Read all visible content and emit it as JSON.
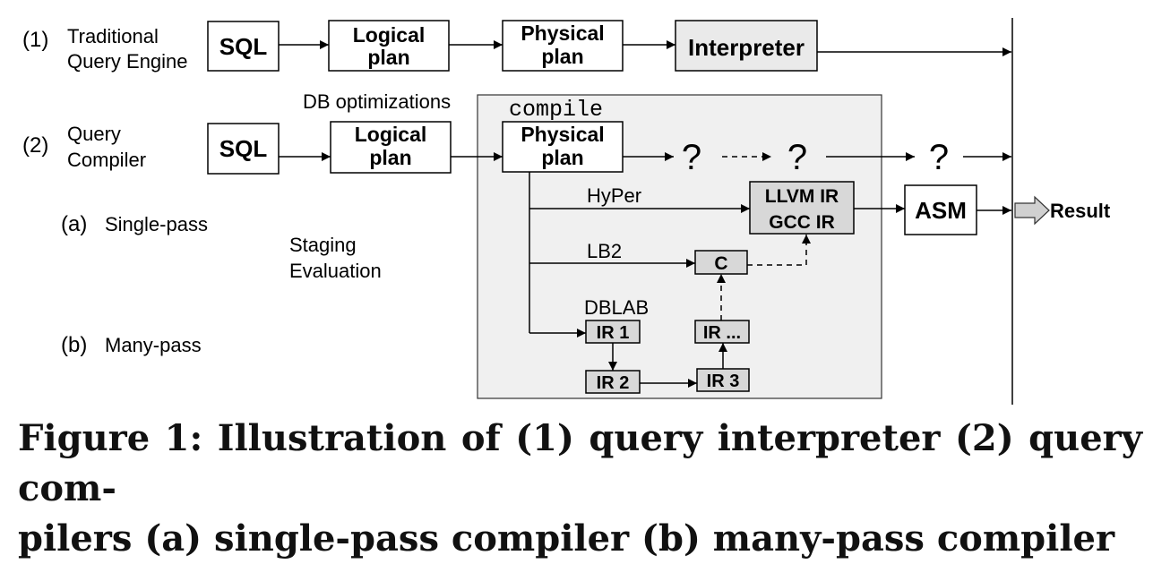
{
  "row1": {
    "label_num": "(1)",
    "label_line1": "Traditional",
    "label_line2": "Query Engine",
    "sql": "SQL",
    "logical_line1": "Logical",
    "logical_line2": "plan",
    "physical_line1": "Physical",
    "physical_line2": "plan",
    "interpreter": "Interpreter"
  },
  "row2": {
    "label_num": "(2)",
    "label_line1": "Query",
    "label_line2": "Compiler",
    "sql": "SQL",
    "logical_line1": "Logical",
    "logical_line2": "plan",
    "physical_line1": "Physical",
    "physical_line2": "plan",
    "db_optimizations": "DB optimizations",
    "compile": "compile",
    "question1": "?",
    "question2": "?",
    "question3": "?"
  },
  "single_pass": {
    "num": "(a)",
    "label": "Single-pass"
  },
  "many_pass": {
    "num": "(b)",
    "label": "Many-pass"
  },
  "staging_line1": "Staging",
  "staging_line2": "Evaluation",
  "paths": {
    "hyper": "HyPer",
    "lb2": "LB2",
    "dblab": "DBLAB"
  },
  "boxes": {
    "llvm": "LLVM IR",
    "gcc": "GCC IR",
    "asm": "ASM",
    "c": "C",
    "ir1": "IR 1",
    "ir2": "IR 2",
    "ir3": "IR 3",
    "ir_more": "IR ..."
  },
  "result": "Result",
  "caption_line1": "Figure 1: Illustration of (1) query interpreter (2) query com-",
  "caption_line2": "pilers (a) single-pass compiler (b) many-pass compiler"
}
